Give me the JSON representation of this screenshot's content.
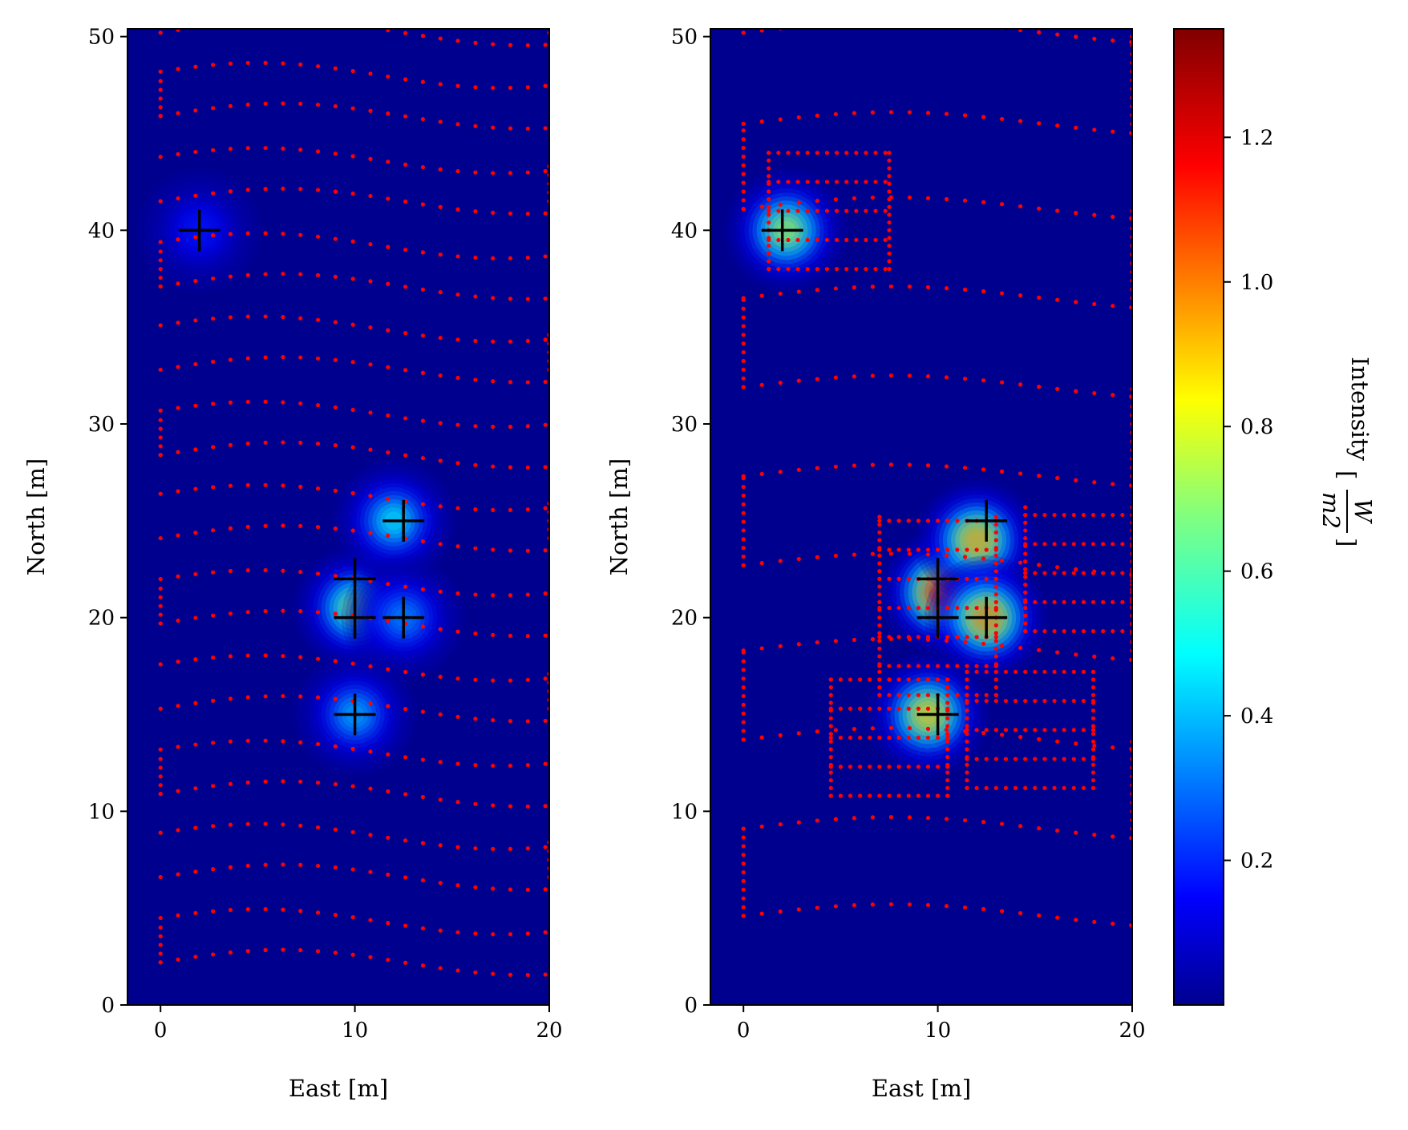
{
  "chart_data": [
    {
      "type": "heatmap",
      "panel": "left",
      "xlabel": "East [m]",
      "ylabel": "North [m]",
      "xlim": [
        -1.7,
        20
      ],
      "ylim": [
        0,
        50.4
      ],
      "xticks": [
        0,
        10,
        20
      ],
      "yticks": [
        0,
        10,
        20,
        30,
        40,
        50
      ],
      "background_color": "#00008f",
      "sources": [
        {
          "x": 2,
          "y": 40
        },
        {
          "x": 10,
          "y": 22
        },
        {
          "x": 10,
          "y": 20
        },
        {
          "x": 12.5,
          "y": 20
        },
        {
          "x": 12.5,
          "y": 25
        },
        {
          "x": 10,
          "y": 15
        }
      ],
      "intensity_peaks": [
        {
          "x": 2,
          "y": 40,
          "value": 0.18
        },
        {
          "x": 10,
          "y": 20.5,
          "value": 0.7
        },
        {
          "x": 12,
          "y": 25,
          "value": 0.5
        },
        {
          "x": 12.5,
          "y": 20,
          "value": 0.35
        },
        {
          "x": 10,
          "y": 15,
          "value": 0.4
        }
      ],
      "path": {
        "style": "lawnmower-wavy",
        "color": "#ff0000",
        "x_range": [
          0,
          20
        ],
        "lane_pairs_bottom_y": [
          2.2,
          6.6,
          10.9,
          15.3,
          19.7,
          24.1,
          28.4,
          32.8,
          37.1,
          41.5,
          45.9,
          50.2
        ],
        "pair_spacing": 2.1,
        "wave_amplitude": 1.3
      }
    },
    {
      "type": "heatmap",
      "panel": "right",
      "xlabel": "East [m]",
      "ylabel": "North [m]",
      "xlim": [
        -1.7,
        20
      ],
      "ylim": [
        0,
        50.4
      ],
      "xticks": [
        0,
        10,
        20
      ],
      "yticks": [
        0,
        10,
        20,
        30,
        40,
        50
      ],
      "background_color": "#00008f",
      "sources": [
        {
          "x": 2,
          "y": 40
        },
        {
          "x": 10,
          "y": 22
        },
        {
          "x": 10,
          "y": 20
        },
        {
          "x": 12.5,
          "y": 20
        },
        {
          "x": 12.5,
          "y": 25
        },
        {
          "x": 10,
          "y": 15
        }
      ],
      "intensity_peaks": [
        {
          "x": 2.2,
          "y": 40,
          "value": 0.75
        },
        {
          "x": 10.2,
          "y": 21.3,
          "value": 1.2
        },
        {
          "x": 12,
          "y": 24,
          "value": 0.95
        },
        {
          "x": 12.5,
          "y": 20,
          "value": 1.0
        },
        {
          "x": 9.5,
          "y": 15,
          "value": 0.9
        }
      ],
      "path": {
        "style": "adaptive-lawnmower",
        "color": "#ff0000",
        "coarse_lanes_y": [
          4.6,
          9.1,
          13.7,
          18.3,
          22.7,
          27.3,
          31.9,
          36.5,
          41.1,
          45.5,
          50.2
        ],
        "refined_regions": [
          {
            "x": [
              1.3,
              7.5
            ],
            "y": [
              38,
              44
            ]
          },
          {
            "x": [
              7,
              13
            ],
            "y": [
              16,
              25.5
            ]
          },
          {
            "x": [
              4.5,
              10.5
            ],
            "y": [
              10.8,
              17
            ]
          },
          {
            "x": [
              14.5,
              20
            ],
            "y": [
              19.3,
              25.8
            ]
          },
          {
            "x": [
              11.5,
              18
            ],
            "y": [
              11.2,
              17.2
            ]
          }
        ]
      }
    }
  ],
  "colorbar": {
    "colormap": "jet",
    "range": [
      0,
      1.35
    ],
    "ticks": [
      "0.2",
      "0.4",
      "0.6",
      "0.8",
      "1.0",
      "1.2"
    ],
    "tick_values": [
      0.2,
      0.4,
      0.6,
      0.8,
      1.0,
      1.2
    ],
    "label": "Intensity",
    "unit_numerator": "W",
    "unit_denominator": "m2"
  }
}
